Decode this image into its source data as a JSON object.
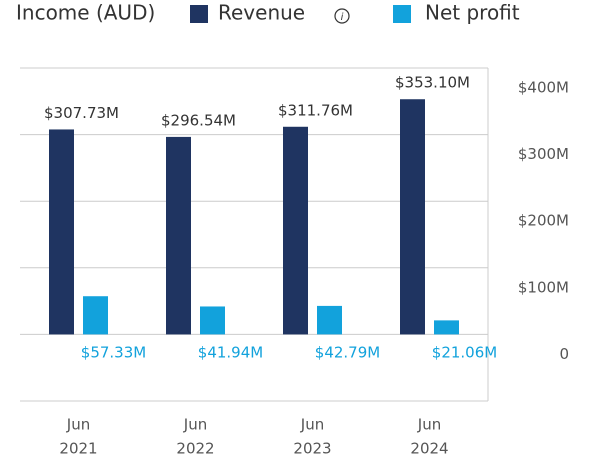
{
  "chart_data": {
    "type": "bar",
    "title": "Income (AUD)",
    "categories": [
      [
        "Jun",
        "2021"
      ],
      [
        "Jun",
        "2022"
      ],
      [
        "Jun",
        "2023"
      ],
      [
        "Jun",
        "2024"
      ]
    ],
    "series": [
      {
        "name": "Revenue",
        "color": "#1f3461",
        "values": [
          307.73,
          296.54,
          311.76,
          353.1
        ],
        "value_labels": [
          "$307.73M",
          "$296.54M",
          "$311.76M",
          "$353.10M"
        ]
      },
      {
        "name": "Net profit",
        "color": "#12a2dc",
        "values": [
          57.33,
          41.94,
          42.79,
          21.06
        ],
        "value_labels": [
          "$57.33M",
          "$41.94M",
          "$42.79M",
          "$21.06M"
        ]
      }
    ],
    "ylim": [
      -100,
      400
    ],
    "yticks": [
      0,
      {
        "value": 100,
        "label": "$100M"
      },
      {
        "value": 200,
        "label": "$200M"
      },
      {
        "value": 300,
        "label": "$300M"
      },
      {
        "value": 400,
        "label": "$400M"
      }
    ],
    "grid": true
  }
}
